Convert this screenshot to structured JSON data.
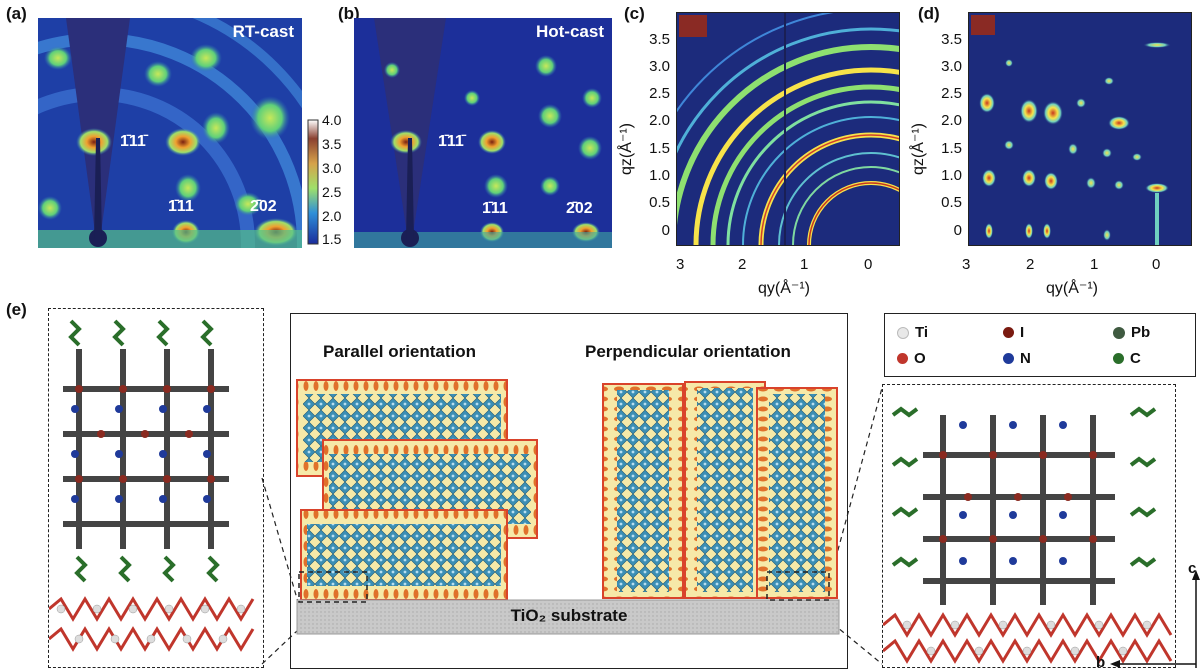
{
  "panels": {
    "a": {
      "label": "(a)",
      "title": "RT-cast",
      "peaks": [
        "1̄11̄",
        "1̄11",
        "2̄02"
      ]
    },
    "b": {
      "label": "(b)",
      "title": "Hot-cast",
      "peaks": [
        "1̄11̄",
        "1̄11",
        "2̄02"
      ]
    },
    "c": {
      "label": "(c)"
    },
    "d": {
      "label": "(d)"
    },
    "e": {
      "label": "(e)"
    }
  },
  "colorbar": {
    "ticks": [
      "4.0",
      "3.5",
      "3.0",
      "2.5",
      "2.0",
      "1.5"
    ],
    "min": 1.5,
    "max": 4.0
  },
  "giwaxs_axes": {
    "ylabel": "qz(Å⁻¹)",
    "xlabel": "qy(Å⁻¹)",
    "yticks": [
      "3.5",
      "3.0",
      "2.5",
      "2.0",
      "1.5",
      "1.0",
      "0.5",
      "0"
    ],
    "xticks": [
      "3",
      "2",
      "1",
      "0"
    ]
  },
  "orientation": {
    "parallel": "Parallel orientation",
    "perpendicular": "Perpendicular orientation",
    "substrate": "TiO₂ substrate"
  },
  "legend": {
    "items": [
      {
        "symbol": "Ti",
        "color": "#e8e8e8"
      },
      {
        "symbol": "I",
        "color": "#7a1a10"
      },
      {
        "symbol": "Pb",
        "color": "#3f5a40"
      },
      {
        "symbol": "O",
        "color": "#c0362c"
      },
      {
        "symbol": "N",
        "color": "#1f3a9a"
      },
      {
        "symbol": "C",
        "color": "#2a6e2a"
      }
    ]
  },
  "axes3d": {
    "c": "c",
    "b": "b"
  },
  "colors": {
    "bg_dark": "#1c2a7a",
    "ring_green": "#8ee070",
    "ring_yellow": "#f7e34a",
    "layer_fill": "#f6e9a8",
    "layer_edge": "#d9432b",
    "octa": "#3c8fb5"
  }
}
